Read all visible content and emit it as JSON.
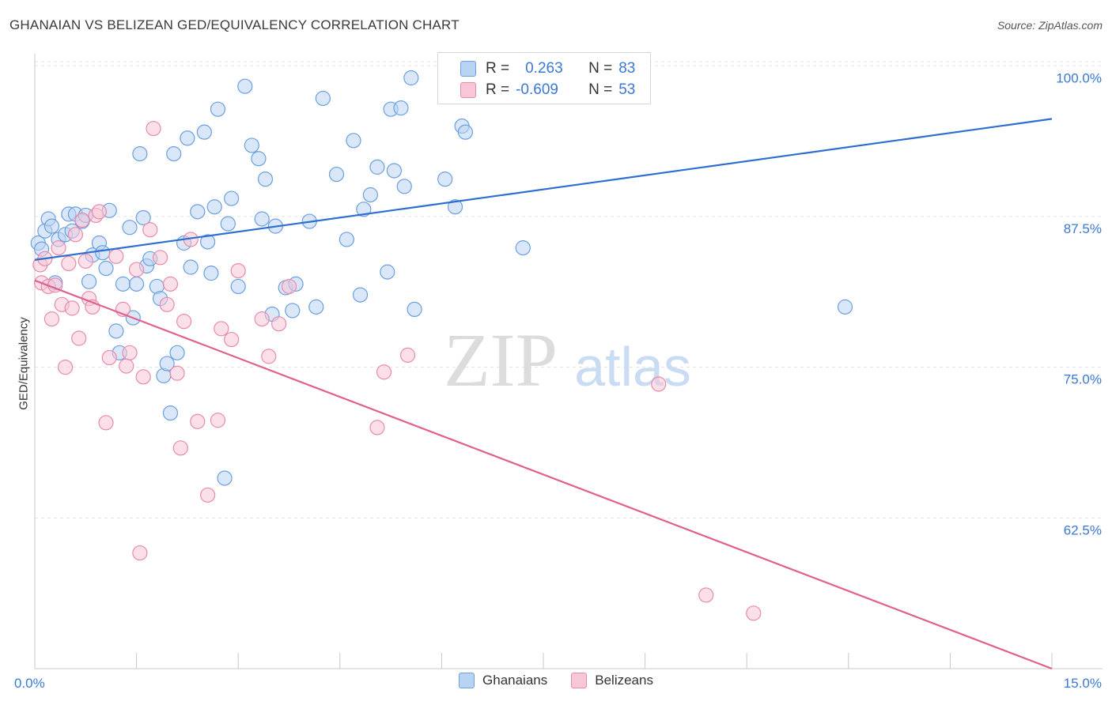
{
  "header": {
    "title": "GHANAIAN VS BELIZEAN GED/EQUIVALENCY CORRELATION CHART",
    "source": "Source: ZipAtlas.com"
  },
  "watermark": {
    "zip": "ZIP",
    "atlas": "atlas"
  },
  "legend_top": {
    "rows": [
      {
        "r_label": "R =",
        "r_value": "0.263",
        "n_label": "N =",
        "n_value": "83"
      },
      {
        "r_label": "R =",
        "r_value": "-0.609",
        "n_label": "N =",
        "n_value": "53"
      }
    ]
  },
  "legend_bottom": {
    "items": [
      {
        "label": "Ghanaians"
      },
      {
        "label": "Belizeans"
      }
    ]
  },
  "colors": {
    "blue_fill": "#b9d3f2",
    "blue_stroke": "#6a9fe0",
    "blue_line": "#2c6fcf",
    "pink_fill": "#f7c6d7",
    "pink_stroke": "#e88aab",
    "pink_line": "#e0608e",
    "tick_label": "#3a78d4",
    "grid": "#e3e3e3"
  },
  "chart_data": {
    "type": "scatter",
    "title": "GHANAIAN VS BELIZEAN GED/EQUIVALENCY CORRELATION CHART",
    "xlabel": "",
    "ylabel": "GED/Equivalency",
    "xlim": [
      0,
      15
    ],
    "ylim": [
      50,
      101
    ],
    "x_ticks": [
      {
        "value": 0,
        "label": "0.0%"
      },
      {
        "value": 15,
        "label": "15.0%"
      }
    ],
    "y_ticks": [
      {
        "value": 62.5,
        "label": "62.5%"
      },
      {
        "value": 75,
        "label": "75.0%"
      },
      {
        "value": 87.5,
        "label": "87.5%"
      },
      {
        "value": 100,
        "label": "100.0%"
      }
    ],
    "grid": true,
    "legend": "top-center",
    "series": [
      {
        "name": "Ghanaians",
        "r": 0.263,
        "n": 83,
        "trend": [
          [
            0,
            83.9
          ],
          [
            15,
            95.6
          ]
        ],
        "points": [
          [
            0.05,
            85.3
          ],
          [
            0.1,
            84.8
          ],
          [
            0.15,
            86.3
          ],
          [
            0.2,
            87.3
          ],
          [
            0.25,
            86.7
          ],
          [
            0.3,
            82
          ],
          [
            0.35,
            85.6
          ],
          [
            0.45,
            86
          ],
          [
            0.5,
            87.7
          ],
          [
            0.55,
            86.3
          ],
          [
            0.6,
            87.7
          ],
          [
            0.7,
            87.1
          ],
          [
            0.75,
            87.6
          ],
          [
            0.8,
            82.1
          ],
          [
            0.85,
            84.3
          ],
          [
            0.95,
            85.3
          ],
          [
            1.0,
            84.5
          ],
          [
            1.05,
            83.2
          ],
          [
            1.1,
            88
          ],
          [
            1.2,
            78
          ],
          [
            1.25,
            76.2
          ],
          [
            1.3,
            81.9
          ],
          [
            1.4,
            86.6
          ],
          [
            1.45,
            79.1
          ],
          [
            1.5,
            81.9
          ],
          [
            1.55,
            92.7
          ],
          [
            1.6,
            87.4
          ],
          [
            1.65,
            83.4
          ],
          [
            1.7,
            84
          ],
          [
            1.8,
            81.7
          ],
          [
            1.85,
            80.7
          ],
          [
            1.9,
            74.3
          ],
          [
            1.95,
            75.3
          ],
          [
            2.0,
            71.2
          ],
          [
            2.05,
            92.7
          ],
          [
            2.1,
            76.2
          ],
          [
            2.2,
            85.3
          ],
          [
            2.25,
            94
          ],
          [
            2.3,
            83.3
          ],
          [
            2.4,
            87.9
          ],
          [
            2.5,
            94.5
          ],
          [
            2.55,
            85.4
          ],
          [
            2.6,
            82.8
          ],
          [
            2.65,
            88.3
          ],
          [
            2.7,
            96.4
          ],
          [
            2.8,
            65.8
          ],
          [
            2.85,
            86.9
          ],
          [
            2.9,
            89
          ],
          [
            3.0,
            81.7
          ],
          [
            3.1,
            98.3
          ],
          [
            3.2,
            93.4
          ],
          [
            3.3,
            92.3
          ],
          [
            3.35,
            87.3
          ],
          [
            3.4,
            90.6
          ],
          [
            3.5,
            79.4
          ],
          [
            3.55,
            86.7
          ],
          [
            3.7,
            81.6
          ],
          [
            3.8,
            79.7
          ],
          [
            3.85,
            81.9
          ],
          [
            4.05,
            87.1
          ],
          [
            4.15,
            80
          ],
          [
            4.25,
            97.3
          ],
          [
            4.45,
            91
          ],
          [
            4.6,
            85.6
          ],
          [
            4.7,
            93.8
          ],
          [
            4.8,
            81
          ],
          [
            4.85,
            88.1
          ],
          [
            4.95,
            89.3
          ],
          [
            5.05,
            91.6
          ],
          [
            5.2,
            82.9
          ],
          [
            5.25,
            96.4
          ],
          [
            5.3,
            91.3
          ],
          [
            5.4,
            96.5
          ],
          [
            5.45,
            90
          ],
          [
            5.55,
            99
          ],
          [
            5.6,
            79.8
          ],
          [
            6.05,
            90.6
          ],
          [
            6.2,
            88.3
          ],
          [
            6.3,
            95
          ],
          [
            6.35,
            94.5
          ],
          [
            6.9,
            99.5
          ],
          [
            7.2,
            84.9
          ],
          [
            11.95,
            80
          ]
        ]
      },
      {
        "name": "Belizeans",
        "r": -0.609,
        "n": 53,
        "trend": [
          [
            0,
            82.2
          ],
          [
            15,
            50
          ]
        ],
        "points": [
          [
            0.08,
            83.5
          ],
          [
            0.1,
            82
          ],
          [
            0.15,
            84
          ],
          [
            0.2,
            81.7
          ],
          [
            0.25,
            79
          ],
          [
            0.3,
            81.8
          ],
          [
            0.35,
            84.9
          ],
          [
            0.4,
            80.2
          ],
          [
            0.45,
            75
          ],
          [
            0.5,
            83.6
          ],
          [
            0.55,
            79.9
          ],
          [
            0.6,
            86
          ],
          [
            0.65,
            77.4
          ],
          [
            0.7,
            87.2
          ],
          [
            0.75,
            83.8
          ],
          [
            0.8,
            80.7
          ],
          [
            0.85,
            80
          ],
          [
            0.9,
            87.6
          ],
          [
            0.95,
            87.9
          ],
          [
            1.05,
            70.4
          ],
          [
            1.1,
            75.8
          ],
          [
            1.2,
            84.2
          ],
          [
            1.3,
            79.8
          ],
          [
            1.35,
            75.1
          ],
          [
            1.4,
            76.2
          ],
          [
            1.5,
            83.1
          ],
          [
            1.55,
            59.6
          ],
          [
            1.6,
            74.2
          ],
          [
            1.7,
            86.4
          ],
          [
            1.75,
            94.8
          ],
          [
            1.85,
            84.1
          ],
          [
            1.95,
            80.2
          ],
          [
            2.0,
            81.9
          ],
          [
            2.1,
            74.5
          ],
          [
            2.15,
            68.3
          ],
          [
            2.2,
            78.8
          ],
          [
            2.3,
            85.6
          ],
          [
            2.4,
            70.5
          ],
          [
            2.55,
            64.4
          ],
          [
            2.7,
            70.6
          ],
          [
            2.75,
            78.2
          ],
          [
            2.9,
            77.3
          ],
          [
            3.0,
            83
          ],
          [
            3.35,
            79
          ],
          [
            3.45,
            75.9
          ],
          [
            3.6,
            78.6
          ],
          [
            3.75,
            81.7
          ],
          [
            5.05,
            70
          ],
          [
            5.15,
            74.6
          ],
          [
            5.5,
            76
          ],
          [
            9.2,
            73.6
          ],
          [
            9.9,
            56.1
          ],
          [
            10.6,
            54.6
          ]
        ]
      }
    ]
  }
}
